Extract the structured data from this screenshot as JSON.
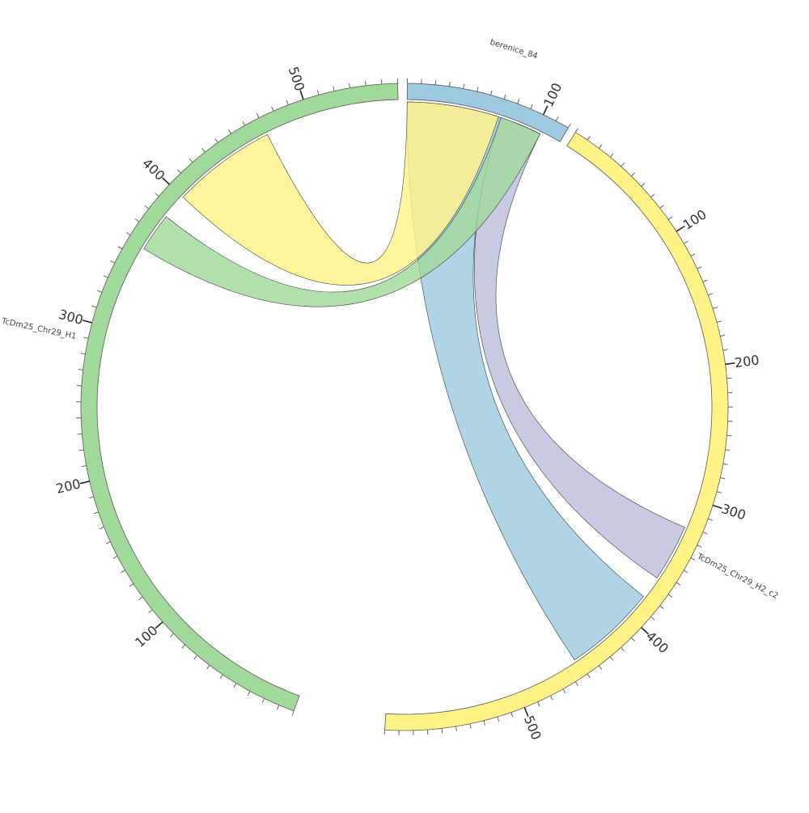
{
  "chart_data": {
    "type": "chord",
    "segments": [
      {
        "name": "berenice_84",
        "color": "#9ecae1",
        "length": 120,
        "tick_labels": [
          "100"
        ],
        "label_values": [
          100
        ]
      },
      {
        "name": "TcDm25_Chr29_H2_c2",
        "color": "#fff388",
        "length": 600,
        "tick_labels": [
          "100",
          "200",
          "300",
          "400",
          "500"
        ],
        "label_values": [
          100,
          200,
          300,
          400,
          500
        ]
      },
      {
        "name": "TcDm25_Chr29_H1",
        "color": "#a1d99b",
        "length": 560,
        "tick_labels": [
          "100",
          "200",
          "300",
          "400",
          "500"
        ],
        "label_values": [
          100,
          200,
          300,
          400,
          500
        ]
      }
    ],
    "links": [
      {
        "from": "berenice_84",
        "from_range": [
          0,
          72
        ],
        "to": "TcDm25_Chr29_H2_c2",
        "to_range": [
          382,
          452
        ],
        "color": "#9ecae1"
      },
      {
        "from": "berenice_84",
        "from_range": [
          72,
          104
        ],
        "to": "TcDm25_Chr29_H2_c2",
        "to_range": [
          322,
          365
        ],
        "color": "#bcbddc"
      },
      {
        "from": "berenice_84",
        "from_range": [
          0,
          70
        ],
        "to": "TcDm25_Chr29_H1",
        "to_range": [
          400,
          470
        ],
        "color": "#fff388"
      },
      {
        "from": "berenice_84",
        "from_range": [
          72,
          104
        ],
        "to": "TcDm25_Chr29_H1",
        "to_range": [
          357,
          383
        ],
        "color": "#a1d99b"
      }
    ]
  }
}
